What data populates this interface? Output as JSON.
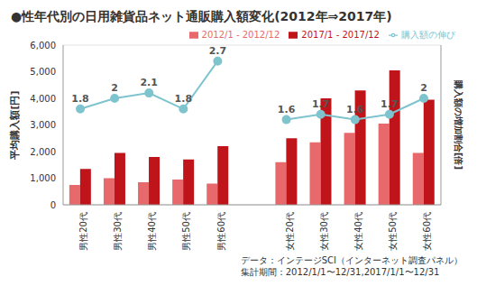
{
  "chart_data": {
    "type": "bar",
    "title": "●性年代別の日用雑貨品ネット通販購入額変化(2012年⇒2017年)",
    "y_label": "平均購入額[円]",
    "y2_label": "購入額の増加割合[倍]",
    "categories": [
      "男性20代",
      "男性30代",
      "男性40代",
      "男性50代",
      "男性60代",
      null,
      "女性20代",
      "女性30代",
      "女性40代",
      "女性50代",
      "女性60代"
    ],
    "series": [
      {
        "name": "2012/1 - 2012/12",
        "color": "#e8696b",
        "values": [
          750,
          1000,
          850,
          950,
          800,
          null,
          1600,
          2350,
          2700,
          3050,
          1950
        ]
      },
      {
        "name": "2017/1 - 2017/12",
        "color": "#c0141b",
        "values": [
          1350,
          1950,
          1800,
          1700,
          2200,
          null,
          2500,
          4000,
          4300,
          5050,
          3950
        ]
      },
      {
        "name": "購入額の伸び",
        "type": "line",
        "axis": "y2",
        "color": "#7ec4cf",
        "marker": "circle",
        "data_labels": true,
        "values": [
          1.8,
          2.0,
          2.1,
          1.8,
          2.7,
          null,
          1.6,
          1.7,
          1.6,
          1.7,
          2.0
        ]
      }
    ],
    "ylim": [
      0,
      6000
    ],
    "yticks": [
      0,
      {
        "value": 1000,
        "label": "1,000"
      },
      {
        "value": 2000,
        "label": "2,000"
      },
      {
        "value": 3000,
        "label": "3,000"
      },
      {
        "value": 4000,
        "label": "4,000"
      },
      {
        "value": 5000,
        "label": "5,000"
      },
      {
        "value": 6000,
        "label": "6,000"
      }
    ],
    "y2lim": [
      0,
      3
    ],
    "grid": true,
    "legend": "upper right",
    "notes": [
      "データ：インテージSCI（インターネット調査パネル）",
      "集計期間：2012/1/1〜12/31,2017/1/1〜12/31"
    ]
  }
}
